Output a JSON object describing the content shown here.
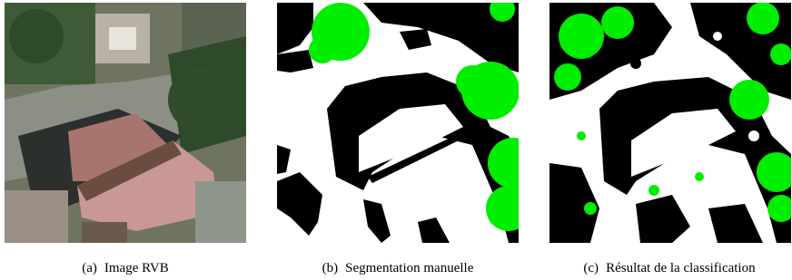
{
  "figures": [
    {
      "label": "(a)",
      "caption": "Image RVB"
    },
    {
      "label": "(b)",
      "caption": "Segmentation manuelle"
    },
    {
      "label": "(c)",
      "caption": "Résultat de la classification"
    }
  ]
}
